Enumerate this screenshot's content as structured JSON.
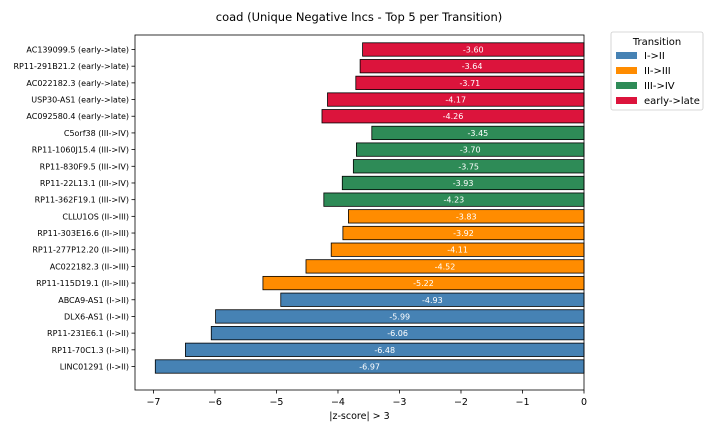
{
  "chart_data": {
    "type": "bar",
    "orientation": "horizontal",
    "title": "coad (Unique Negative lncs - Top 5 per Transition)",
    "xlabel": "|z-score| > 3",
    "ylabel": "",
    "xlim": [
      -7.3,
      0
    ],
    "xticks": [
      "−7",
      "−6",
      "−5",
      "−4",
      "−3",
      "−2",
      "−1",
      "0"
    ],
    "xtick_values": [
      -7,
      -6,
      -5,
      -4,
      -3,
      -2,
      -1,
      0
    ],
    "legend": {
      "title": "Transition",
      "placement": "outside-top-right",
      "entries": [
        {
          "name": "I->II",
          "color": "#4682b4"
        },
        {
          "name": "II->III",
          "color": "#ff8c00"
        },
        {
          "name": "III->IV",
          "color": "#2e8b57"
        },
        {
          "name": "early->late",
          "color": "#dc143c"
        }
      ]
    },
    "bars": [
      {
        "label": "AC139099.5 (early->late)",
        "value": -3.6,
        "value_label": "-3.60",
        "group": "early->late"
      },
      {
        "label": "RP11-291B21.2 (early->late)",
        "value": -3.64,
        "value_label": "-3.64",
        "group": "early->late"
      },
      {
        "label": "AC022182.3 (early->late)",
        "value": -3.71,
        "value_label": "-3.71",
        "group": "early->late"
      },
      {
        "label": "USP30-AS1 (early->late)",
        "value": -4.17,
        "value_label": "-4.17",
        "group": "early->late"
      },
      {
        "label": "AC092580.4 (early->late)",
        "value": -4.26,
        "value_label": "-4.26",
        "group": "early->late"
      },
      {
        "label": "C5orf38 (III->IV)",
        "value": -3.45,
        "value_label": "-3.45",
        "group": "III->IV"
      },
      {
        "label": "RP11-1060J15.4 (III->IV)",
        "value": -3.7,
        "value_label": "-3.70",
        "group": "III->IV"
      },
      {
        "label": "RP11-830F9.5 (III->IV)",
        "value": -3.75,
        "value_label": "-3.75",
        "group": "III->IV"
      },
      {
        "label": "RP11-22L13.1 (III->IV)",
        "value": -3.93,
        "value_label": "-3.93",
        "group": "III->IV"
      },
      {
        "label": "RP11-362F19.1 (III->IV)",
        "value": -4.23,
        "value_label": "-4.23",
        "group": "III->IV"
      },
      {
        "label": "CLLU1OS (II->III)",
        "value": -3.83,
        "value_label": "-3.83",
        "group": "II->III"
      },
      {
        "label": "RP11-303E16.6 (II->III)",
        "value": -3.92,
        "value_label": "-3.92",
        "group": "II->III"
      },
      {
        "label": "RP11-277P12.20 (II->III)",
        "value": -4.11,
        "value_label": "-4.11",
        "group": "II->III"
      },
      {
        "label": "AC022182.3 (II->III)",
        "value": -4.52,
        "value_label": "-4.52",
        "group": "II->III"
      },
      {
        "label": "RP11-115D19.1 (II->III)",
        "value": -5.22,
        "value_label": "-5.22",
        "group": "II->III"
      },
      {
        "label": "ABCA9-AS1 (I->II)",
        "value": -4.93,
        "value_label": "-4.93",
        "group": "I->II"
      },
      {
        "label": "DLX6-AS1 (I->II)",
        "value": -5.99,
        "value_label": "-5.99",
        "group": "I->II"
      },
      {
        "label": "RP11-231E6.1 (I->II)",
        "value": -6.06,
        "value_label": "-6.06",
        "group": "I->II"
      },
      {
        "label": "RP11-70C1.3 (I->II)",
        "value": -6.48,
        "value_label": "-6.48",
        "group": "I->II"
      },
      {
        "label": "LINC01291 (I->II)",
        "value": -6.97,
        "value_label": "-6.97",
        "group": "I->II"
      }
    ]
  }
}
